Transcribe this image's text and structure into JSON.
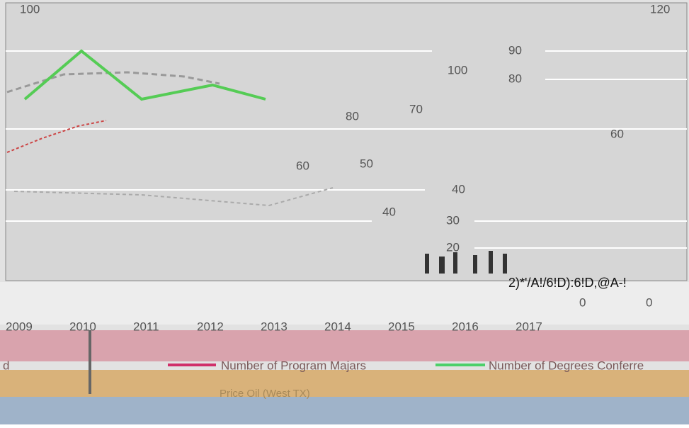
{
  "axis_labels": [
    "100",
    "120",
    "90",
    "80",
    "100",
    "70",
    "80",
    "60",
    "60",
    "50",
    "40",
    "40",
    "30",
    "20",
    "0",
    "0"
  ],
  "annotation": "2)*'/A!/6!D):6!D,@A-!",
  "years": [
    "2009",
    "2010",
    "2011",
    "2012",
    "2013",
    "2014",
    "2015",
    "2016",
    "2017"
  ],
  "legend": [
    "d",
    "Number of Program Majars",
    "Number of Degrees Conferre"
  ],
  "footer": "Price Oil (West TX)"
}
